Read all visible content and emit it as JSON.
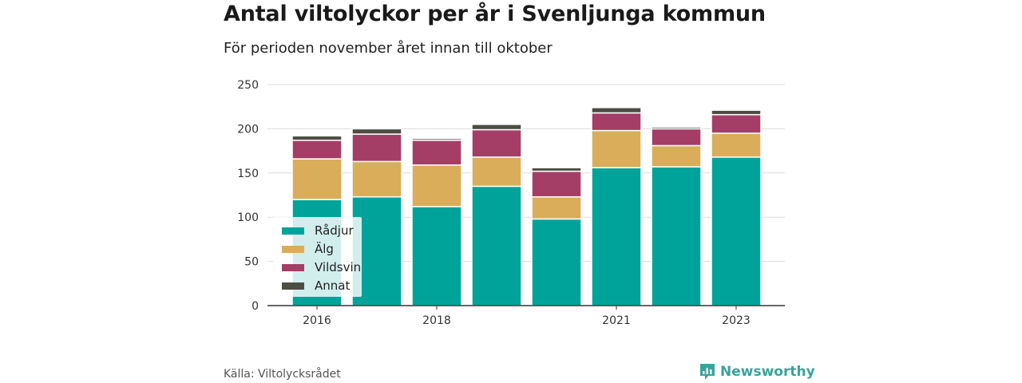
{
  "title": "Antal viltolyckor per år i Svenljunga kommun",
  "subtitle": "För perioden november året innan till oktober",
  "source": "Källa: Viltolycksrådet",
  "brand": "Newsworthy",
  "colors": {
    "Rådjur": "#00a39a",
    "Älg": "#d9ad5a",
    "Vildsvin": "#a43e66",
    "Annat": "#4d4d44"
  },
  "chart_data": {
    "type": "bar",
    "stacked": true,
    "categories": [
      "2016",
      "2017",
      "2018",
      "2019",
      "2020",
      "2021",
      "2022",
      "2023"
    ],
    "x_tick_labels": [
      "2016",
      "2018",
      "2021",
      "2023"
    ],
    "series": [
      {
        "name": "Rådjur",
        "values": [
          120,
          123,
          112,
          135,
          98,
          156,
          157,
          168
        ]
      },
      {
        "name": "Älg",
        "values": [
          46,
          40,
          47,
          33,
          25,
          42,
          24,
          27
        ]
      },
      {
        "name": "Vildsvin",
        "values": [
          21,
          31,
          28,
          31,
          29,
          20,
          19,
          21
        ]
      },
      {
        "name": "Annat",
        "values": [
          5,
          6,
          2,
          6,
          4,
          6,
          2,
          5
        ]
      }
    ],
    "ylim": [
      0,
      250
    ],
    "yticks": [
      0,
      50,
      100,
      150,
      200,
      250
    ],
    "grid": true,
    "legend_position": "bottom-left"
  }
}
